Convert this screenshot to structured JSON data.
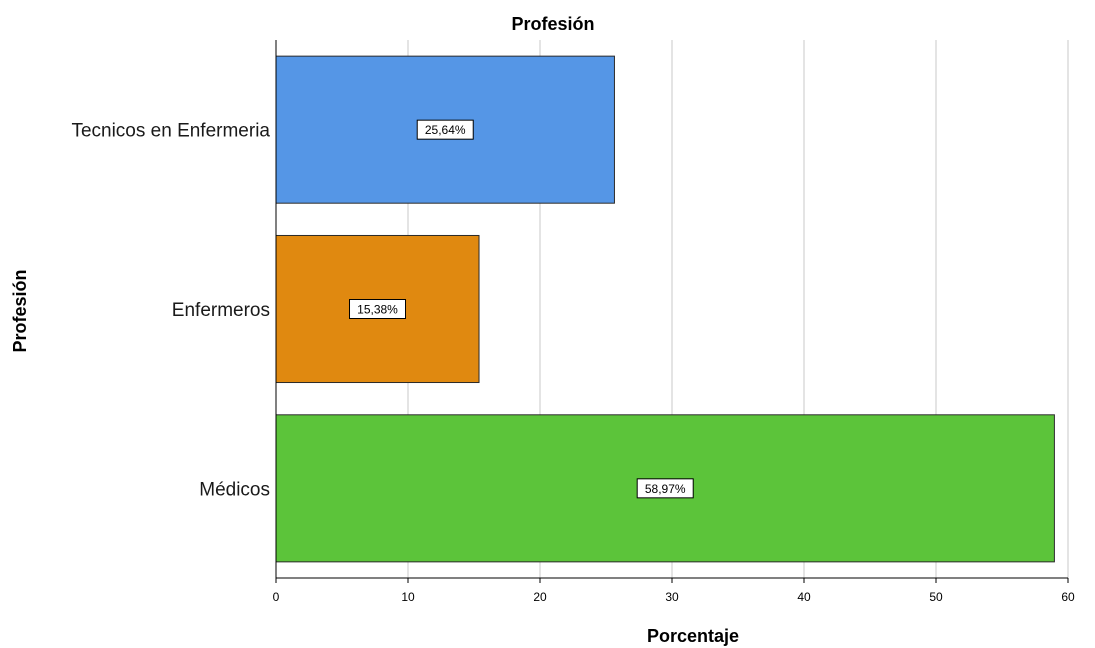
{
  "chart_data": {
    "type": "bar",
    "orientation": "horizontal",
    "title": "Profesión",
    "xlabel": "Porcentaje",
    "ylabel": "Profesión",
    "categories": [
      "Tecnicos en Enfermeria",
      "Enfermeros",
      "Médicos"
    ],
    "values": [
      25.64,
      15.38,
      58.97
    ],
    "data_labels": [
      "25,64%",
      "15,38%",
      "58,97%"
    ],
    "colors": [
      "#5596e6",
      "#e08910",
      "#5cc43a"
    ],
    "xlim": [
      0,
      60
    ],
    "xticks": [
      0,
      10,
      20,
      30,
      40,
      50,
      60
    ],
    "grid": true,
    "legend": false
  }
}
